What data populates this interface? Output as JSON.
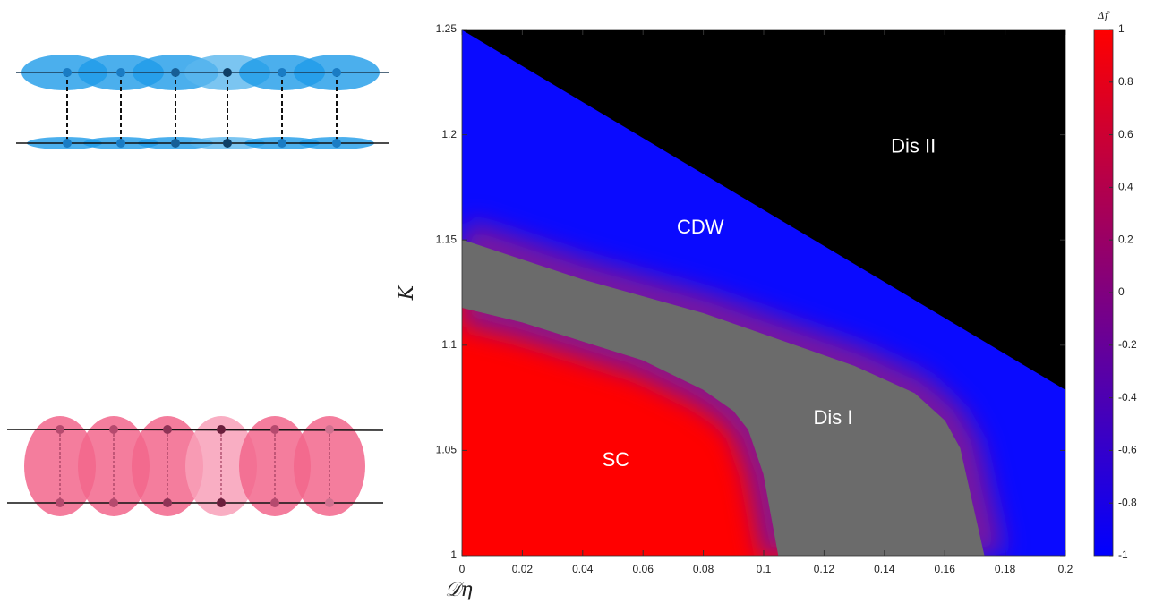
{
  "chart_data": {
    "type": "phase",
    "xlabel": "𝒟η",
    "ylabel": "K",
    "xlim": [
      0,
      0.2
    ],
    "ylim": [
      1,
      1.25
    ],
    "xticks": [
      0,
      0.02,
      0.04,
      0.06,
      0.08,
      0.1,
      0.12,
      0.14,
      0.16,
      0.18,
      0.2
    ],
    "yticks": [
      1,
      1.05,
      1.1,
      1.15,
      1.2,
      1.25
    ],
    "boundaries": [
      {
        "x": [
          0,
          0.2
        ],
        "y": [
          1.25,
          1.079
        ]
      },
      {
        "x": [
          0,
          0.04,
          0.08,
          0.1,
          0.13,
          0.15,
          0.16,
          0.165,
          0.173
        ],
        "y": [
          1.15,
          1.131,
          1.115,
          1.105,
          1.09,
          1.077,
          1.064,
          1.051,
          1.0
        ]
      },
      {
        "x": [
          0,
          0.02,
          0.04,
          0.06,
          0.08,
          0.09,
          0.095,
          0.1,
          0.105
        ],
        "y": [
          1.118,
          1.111,
          1.102,
          1.093,
          1.079,
          1.069,
          1.06,
          1.039,
          1.0
        ]
      }
    ],
    "regions": [
      {
        "label": "Dis II",
        "color": "#000000",
        "x": 0.1496,
        "y": 1.194
      },
      {
        "label": "CDW",
        "color": "#0a0aff",
        "x": 0.079,
        "y": 1.1556
      },
      {
        "label": "Dis I",
        "color": "#6b6b6b",
        "x": 0.123,
        "y": 1.065
      },
      {
        "label": "SC",
        "color": "#ff0000",
        "x": 0.051,
        "y": 1.045
      }
    ],
    "edge_color": "#7a149e",
    "colorbar": {
      "label": "Δf",
      "lim": [
        -1,
        1
      ],
      "ticks": [
        1,
        0.8,
        0.6,
        0.4,
        0.2,
        0,
        -0.2,
        -0.4,
        -0.6,
        -0.8,
        -1
      ],
      "colors": [
        "#0000ff",
        "#80007f",
        "#ff0000"
      ]
    }
  }
}
